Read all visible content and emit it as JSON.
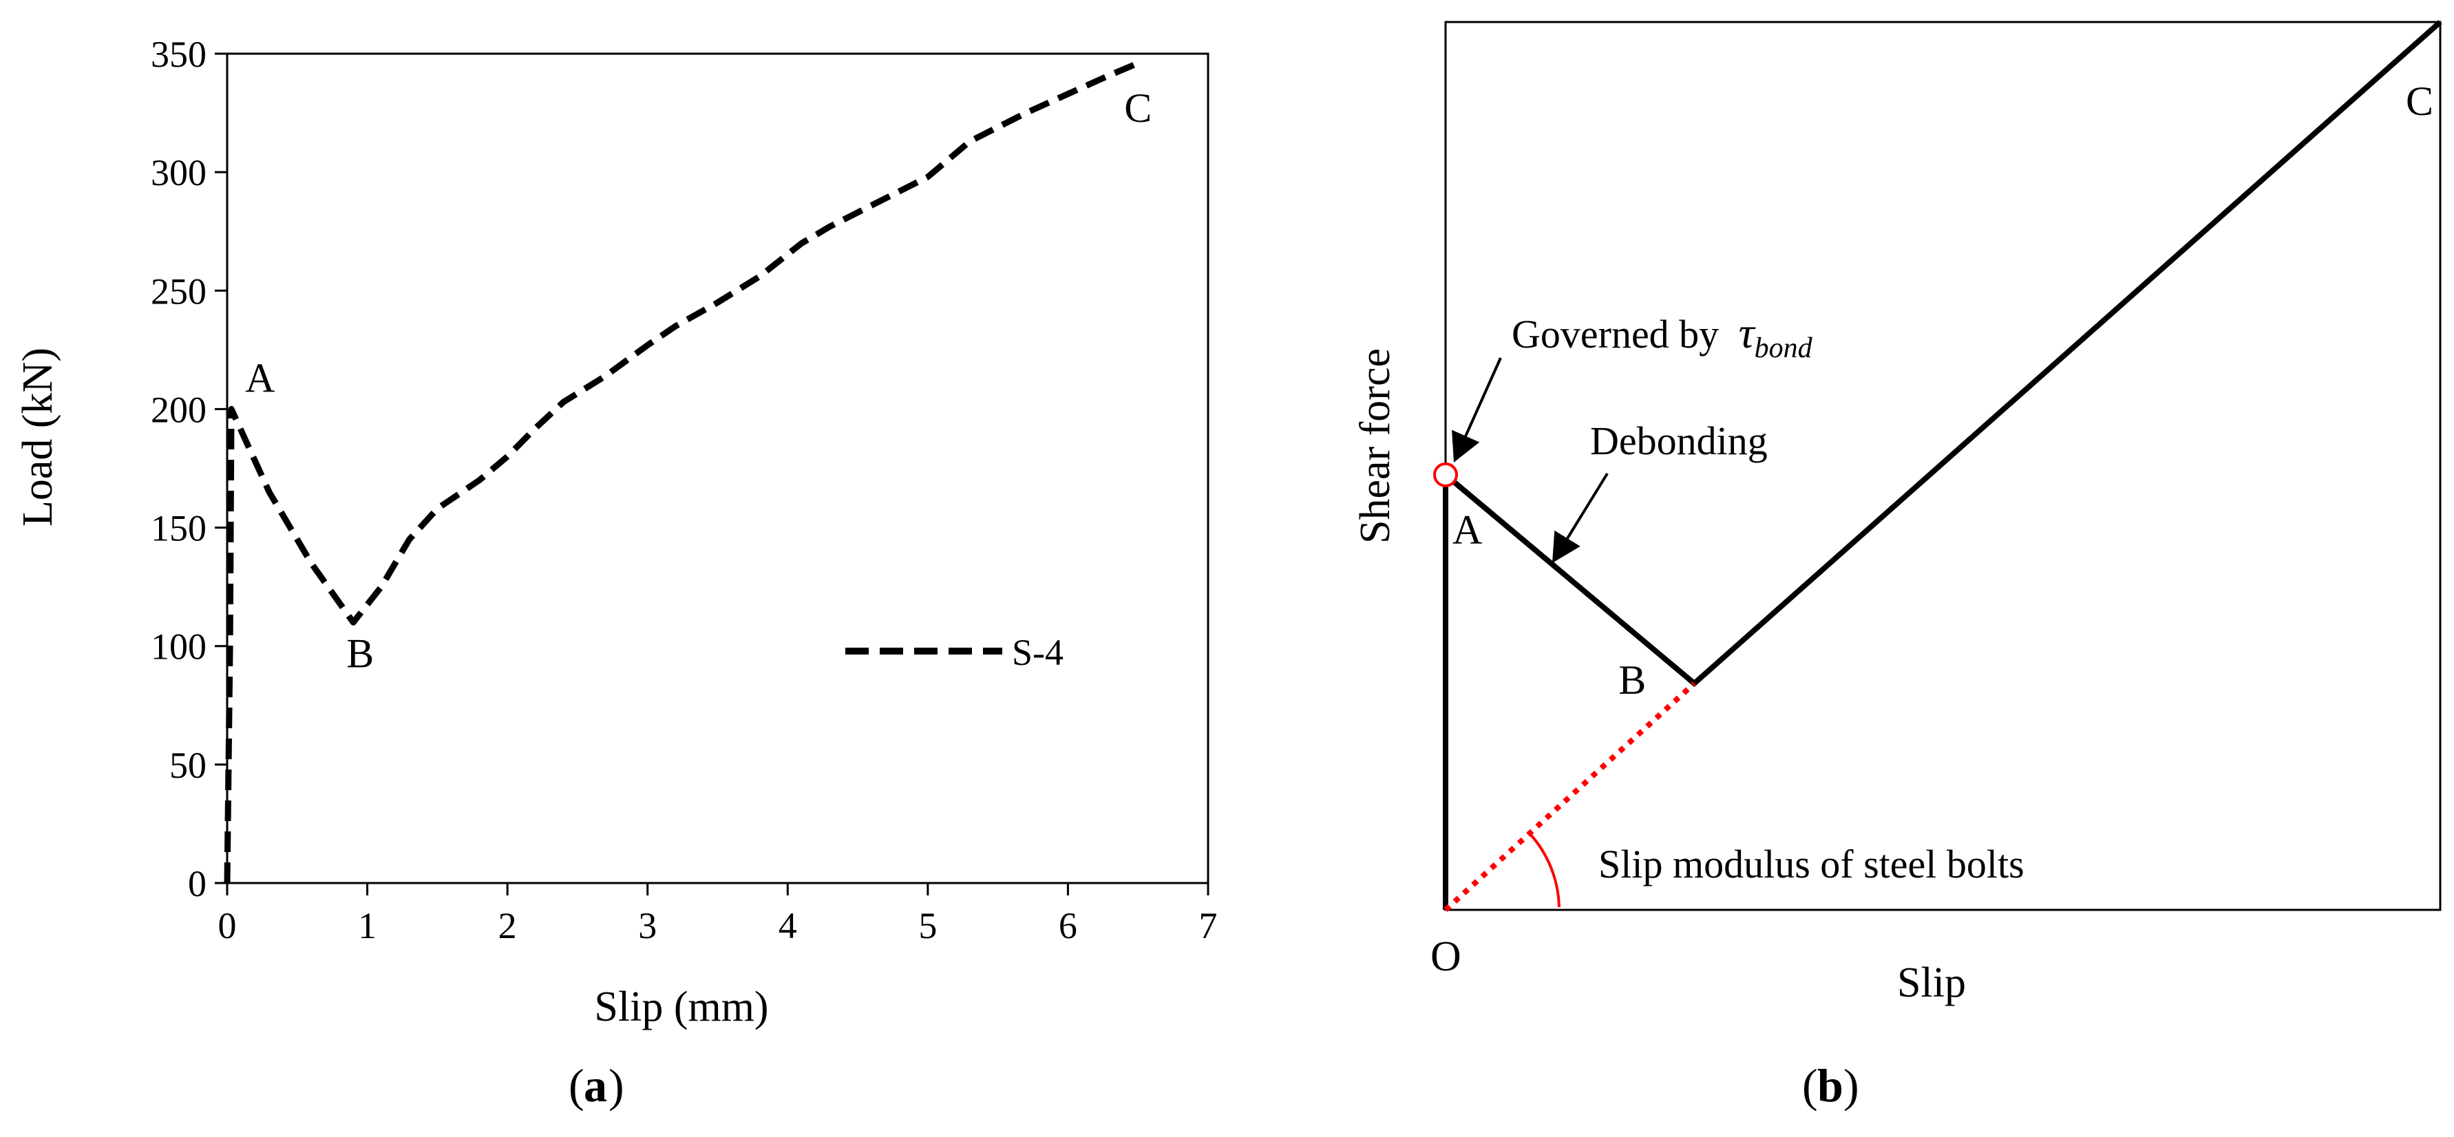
{
  "chart_data": [
    {
      "type": "line",
      "panel_label": "a",
      "title": "",
      "xlabel": "Slip (mm)",
      "ylabel": "Load (kN)",
      "xlim": [
        0,
        7
      ],
      "ylim": [
        0,
        350
      ],
      "x_ticks": [
        0,
        1,
        2,
        3,
        4,
        5,
        6,
        7
      ],
      "y_ticks": [
        0,
        50,
        100,
        150,
        200,
        250,
        300,
        350
      ],
      "grid": false,
      "legend_position": "center-right",
      "series": [
        {
          "name": "S-4",
          "style": "dashed",
          "color": "#000000",
          "points": [
            [
              0.0,
              0
            ],
            [
              0.02,
              100
            ],
            [
              0.03,
              200
            ],
            [
              0.3,
              165
            ],
            [
              0.6,
              135
            ],
            [
              0.9,
              110
            ],
            [
              1.1,
              125
            ],
            [
              1.3,
              145
            ],
            [
              1.5,
              158
            ],
            [
              1.8,
              170
            ],
            [
              2.0,
              180
            ],
            [
              2.2,
              192
            ],
            [
              2.4,
              203
            ],
            [
              2.7,
              214
            ],
            [
              3.0,
              227
            ],
            [
              3.2,
              235
            ],
            [
              3.5,
              245
            ],
            [
              3.8,
              256
            ],
            [
              4.1,
              270
            ],
            [
              4.3,
              277
            ],
            [
              4.6,
              286
            ],
            [
              5.0,
              298
            ],
            [
              5.3,
              313
            ],
            [
              5.7,
              325
            ],
            [
              6.0,
              333
            ],
            [
              6.3,
              341
            ],
            [
              6.5,
              346
            ]
          ]
        }
      ],
      "point_labels": [
        {
          "text": "A",
          "x": 0.03,
          "y": 200
        },
        {
          "text": "B",
          "x": 0.9,
          "y": 110
        },
        {
          "text": "C",
          "x": 6.5,
          "y": 346
        }
      ]
    },
    {
      "type": "line",
      "panel_label": "b",
      "title": "",
      "xlabel": "Slip",
      "ylabel": "Shear force",
      "xlim": [
        0,
        100
      ],
      "ylim": [
        0,
        100
      ],
      "grid": false,
      "series": [
        {
          "name": "response",
          "style": "solid",
          "color": "#000000",
          "points": [
            [
              0,
              0
            ],
            [
              0,
              49
            ],
            [
              25,
              25.5
            ],
            [
              100,
              100
            ]
          ]
        },
        {
          "name": "slip modulus of steel bolts",
          "style": "dotted",
          "color": "#ff0000",
          "points": [
            [
              0,
              0
            ],
            [
              25,
              25.5
            ]
          ]
        }
      ],
      "markers": [
        {
          "name": "bond-limit",
          "x": 0,
          "y": 49,
          "shape": "open-circle",
          "color": "#ff0000"
        }
      ],
      "point_labels": [
        {
          "text": "O",
          "x": 0,
          "y": 0
        },
        {
          "text": "A",
          "x": 0,
          "y": 49
        },
        {
          "text": "B",
          "x": 25,
          "y": 25.5
        },
        {
          "text": "C",
          "x": 100,
          "y": 100
        }
      ],
      "annotations": [
        {
          "text": "Governed by",
          "math": "τ",
          "subscript": "bond"
        },
        {
          "text": "Debonding"
        },
        {
          "text": "Slip modulus of steel bolts"
        }
      ]
    }
  ],
  "colors": {
    "axis": "#000000",
    "series": "#000000",
    "accent": "#ff0000"
  }
}
